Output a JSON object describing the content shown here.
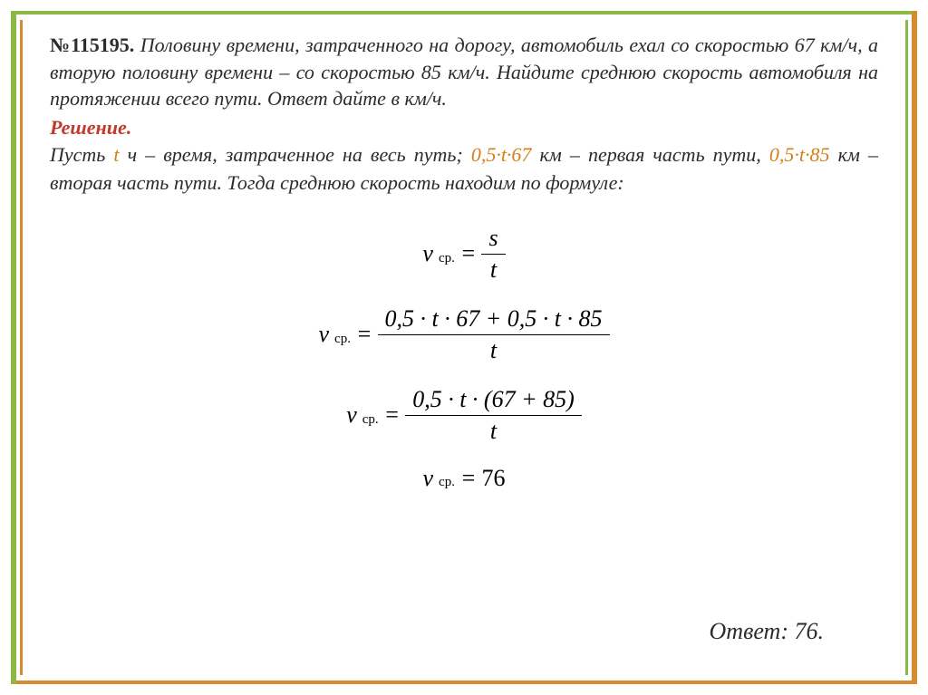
{
  "decor": {
    "left_outer_color": "#8fb744",
    "left_inner_color": "#d88a2e",
    "right_outer_color": "#d88a2e",
    "right_inner_color": "#8fb744"
  },
  "problem": {
    "number": "№115195.",
    "text": "Половину времени, затраченного на дорогу, автомобиль ехал со скоростью 67 км/ч, а вторую половину времени – со скоростью 85 км/ч. Найдите среднюю скорость автомобиля на протяжении всего пути. Ответ дайте в км/ч."
  },
  "solution": {
    "label": "Решение.",
    "intro_1": "Пусть ",
    "var_t": "t",
    "intro_2": " ч – время, затраченное на весь путь; ",
    "expr_1": "0,5·t·67",
    "intro_3": " км – первая часть пути, ",
    "expr_2": "0,5·t·85",
    "intro_4": " км – вторая часть пути. Тогда среднюю скорость находим по формуле:"
  },
  "formulas": {
    "f1": {
      "lhs_var": "v",
      "lhs_sub": "ср.",
      "eq": "=",
      "num": "s",
      "den": "t"
    },
    "f2": {
      "lhs_var": "v",
      "lhs_sub": "ср.",
      "eq": "=",
      "num": "0,5 · t · 67 + 0,5 · t · 85",
      "den": "t"
    },
    "f3": {
      "lhs_var": "v",
      "lhs_sub": "ср.",
      "eq": "=",
      "num": "0,5 · t · (67 + 85)",
      "den": "t"
    },
    "f4": {
      "lhs_var": "v",
      "lhs_sub": "ср.",
      "eq": "=",
      "rhs": "76"
    }
  },
  "answer": {
    "label": "Ответ: ",
    "value": "76."
  },
  "styling": {
    "text_color": "#2c2c2c",
    "accent_color": "#d48019",
    "solution_label_color": "#c0392b",
    "body_fontsize": 22,
    "formula_fontsize": 26,
    "background": "#ffffff"
  }
}
